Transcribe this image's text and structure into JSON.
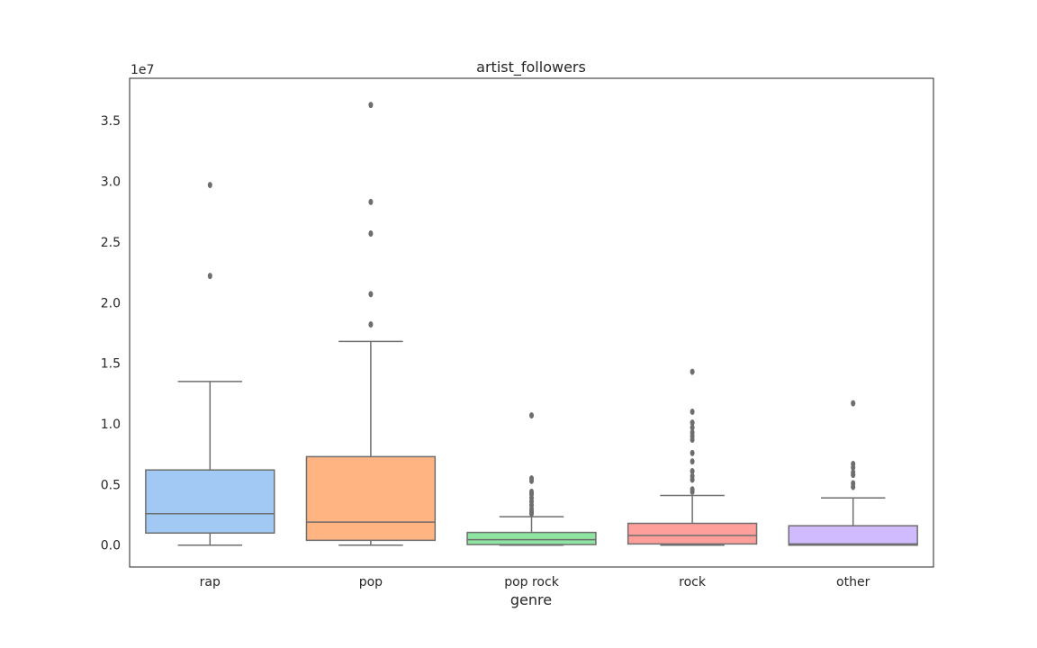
{
  "chart_data": {
    "type": "box",
    "title": "artist_followers",
    "xlabel": "genre",
    "ylabel": "",
    "y_scale_label": "1e7",
    "y_scale": 10000000,
    "ylim": [
      -1800000,
      38500000
    ],
    "yticks": [
      0,
      5000000,
      10000000,
      15000000,
      20000000,
      25000000,
      30000000,
      35000000
    ],
    "ytick_labels": [
      "0.0",
      "0.5",
      "1.0",
      "1.5",
      "2.0",
      "2.5",
      "3.0",
      "3.5"
    ],
    "grid": false,
    "categories": [
      "rap",
      "pop",
      "pop rock",
      "rock",
      "other"
    ],
    "boxes": [
      {
        "name": "rap",
        "color": "#a1c9f4",
        "whisker_low": 0,
        "q1": 1000000,
        "median": 2600000,
        "q3": 6200000,
        "whisker_high": 13500000,
        "outliers": [
          22200000,
          29700000
        ]
      },
      {
        "name": "pop",
        "color": "#ffb482",
        "whisker_low": 0,
        "q1": 400000,
        "median": 1900000,
        "q3": 7300000,
        "whisker_high": 16800000,
        "outliers": [
          18200000,
          20700000,
          25700000,
          28300000,
          36300000
        ]
      },
      {
        "name": "pop rock",
        "color": "#8de5a1",
        "whisker_low": 0,
        "q1": 50000,
        "median": 450000,
        "q3": 1050000,
        "whisker_high": 2350000,
        "outliers": [
          2600000,
          2800000,
          3000000,
          3300000,
          3600000,
          3900000,
          4200000,
          4400000,
          5300000,
          5500000,
          10700000
        ]
      },
      {
        "name": "rock",
        "color": "#ff9f9b",
        "whisker_low": 0,
        "q1": 100000,
        "median": 800000,
        "q3": 1800000,
        "whisker_high": 4100000,
        "outliers": [
          4400000,
          4600000,
          5400000,
          5700000,
          6100000,
          6900000,
          7600000,
          8700000,
          9000000,
          9300000,
          9700000,
          10100000,
          11000000,
          14300000
        ]
      },
      {
        "name": "other",
        "color": "#d0bbff",
        "whisker_low": 0,
        "q1": 0,
        "median": 100000,
        "q3": 1600000,
        "whisker_high": 3900000,
        "outliers": [
          4800000,
          5100000,
          5800000,
          6000000,
          6400000,
          6700000,
          11700000
        ]
      }
    ]
  }
}
